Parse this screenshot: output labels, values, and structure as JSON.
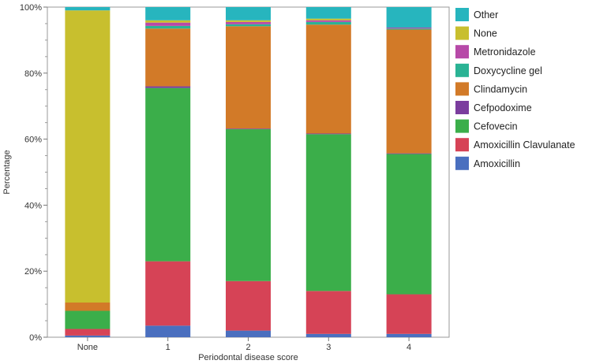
{
  "chart_data": {
    "type": "bar",
    "stacked": true,
    "xlabel": "Periodontal disease score",
    "ylabel": "Percentage",
    "categories": [
      "None",
      "1",
      "2",
      "3",
      "4"
    ],
    "ylim": [
      0,
      100
    ],
    "yticks": [
      0,
      20,
      40,
      60,
      80,
      100
    ],
    "ytick_labels": [
      "0%",
      "20%",
      "40%",
      "60%",
      "80%",
      "100%"
    ],
    "grid": false,
    "legend_position": "right",
    "series": [
      {
        "name": "Amoxicillin",
        "color": "#4a6fbf",
        "values": [
          0.5,
          3.5,
          2,
          1,
          1
        ]
      },
      {
        "name": "Amoxicillin Clavulanate",
        "color": "#d64356",
        "values": [
          2,
          19.5,
          15,
          13,
          12
        ]
      },
      {
        "name": "Cefovecin",
        "color": "#3bae4a",
        "values": [
          5.5,
          52.5,
          46,
          47.5,
          42.5
        ]
      },
      {
        "name": "Cefpodoxime",
        "color": "#7b3d9e",
        "values": [
          0,
          0.5,
          0.2,
          0.2,
          0.2
        ]
      },
      {
        "name": "Clindamycin",
        "color": "#d27a28",
        "values": [
          2.5,
          17.5,
          31,
          33,
          37.5
        ]
      },
      {
        "name": "Doxycycline gel",
        "color": "#2ab394",
        "values": [
          0,
          0.8,
          0.6,
          0.8,
          0.3
        ]
      },
      {
        "name": "Metronidazole",
        "color": "#b74aa8",
        "values": [
          0,
          1,
          0.7,
          0.5,
          0.3
        ]
      },
      {
        "name": "None",
        "color": "#c8bf2e",
        "values": [
          88.5,
          0.7,
          0.5,
          0.5,
          0
        ]
      },
      {
        "name": "Other",
        "color": "#27b5be",
        "values": [
          1,
          4,
          4,
          3.5,
          6.2
        ]
      }
    ],
    "legend_order": [
      "Other",
      "None",
      "Metronidazole",
      "Doxycycline gel",
      "Clindamycin",
      "Cefpodoxime",
      "Cefovecin",
      "Amoxicillin Clavulanate",
      "Amoxicillin"
    ]
  }
}
